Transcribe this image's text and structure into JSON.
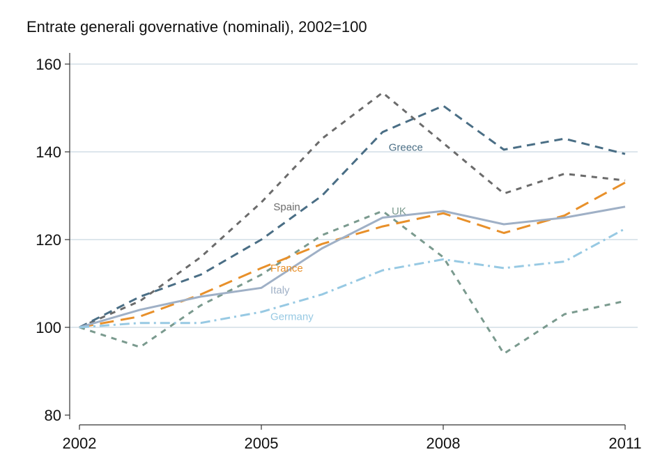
{
  "chart_data": {
    "type": "line",
    "title": "Entrate generali governative (nominali), 2002=100",
    "xlabel": "",
    "ylabel": "",
    "x": [
      2002,
      2003,
      2004,
      2005,
      2006,
      2007,
      2008,
      2009,
      2010,
      2011
    ],
    "xlim": [
      2002,
      2011
    ],
    "ylim": [
      80,
      160
    ],
    "xticks": [
      2002,
      2005,
      2008,
      2011
    ],
    "yticks": [
      80,
      100,
      120,
      140,
      160
    ],
    "xtick_labels": [
      "2002",
      "2005",
      "2008",
      "2011"
    ],
    "ytick_labels": [
      "80",
      "100",
      "120",
      "140",
      "160"
    ],
    "grid": true,
    "series": [
      {
        "name": "Spain",
        "color": "#6b6b6b",
        "dash": "short-dash",
        "values": [
          100,
          106,
          116,
          128.5,
          143,
          153.5,
          142,
          130.5,
          135,
          133.5
        ],
        "label_at": [
          2005.2,
          127.5
        ]
      },
      {
        "name": "Greece",
        "color": "#4a6e85",
        "dash": "dash",
        "values": [
          100,
          107,
          112,
          120,
          130,
          144.5,
          150.5,
          140.5,
          143,
          139.5
        ],
        "label_at": [
          2007.1,
          141
        ]
      },
      {
        "name": "UK",
        "color": "#7a9a8e",
        "dash": "short-dash",
        "values": [
          100,
          95.5,
          105,
          112,
          121,
          126.5,
          116,
          94,
          103,
          106
        ],
        "label_at": [
          2007.15,
          126.5
        ]
      },
      {
        "name": "France",
        "color": "#e8902a",
        "dash": "long-dash",
        "values": [
          100,
          102.5,
          107.5,
          113.5,
          119,
          123,
          126,
          121.5,
          125.5,
          133
        ],
        "label_at": [
          2005.15,
          113.5
        ]
      },
      {
        "name": "Italy",
        "color": "#9fb0c6",
        "dash": "solid",
        "values": [
          100,
          104,
          107,
          109,
          118,
          125,
          126.5,
          123.5,
          125,
          127.5
        ],
        "label_at": [
          2005.15,
          108.5
        ]
      },
      {
        "name": "Germany",
        "color": "#97c9e3",
        "dash": "dash-dot",
        "values": [
          100,
          101,
          101,
          103.5,
          107.5,
          113,
          115.5,
          113.5,
          115,
          122.5
        ],
        "label_at": [
          2005.15,
          102.5
        ]
      }
    ]
  }
}
